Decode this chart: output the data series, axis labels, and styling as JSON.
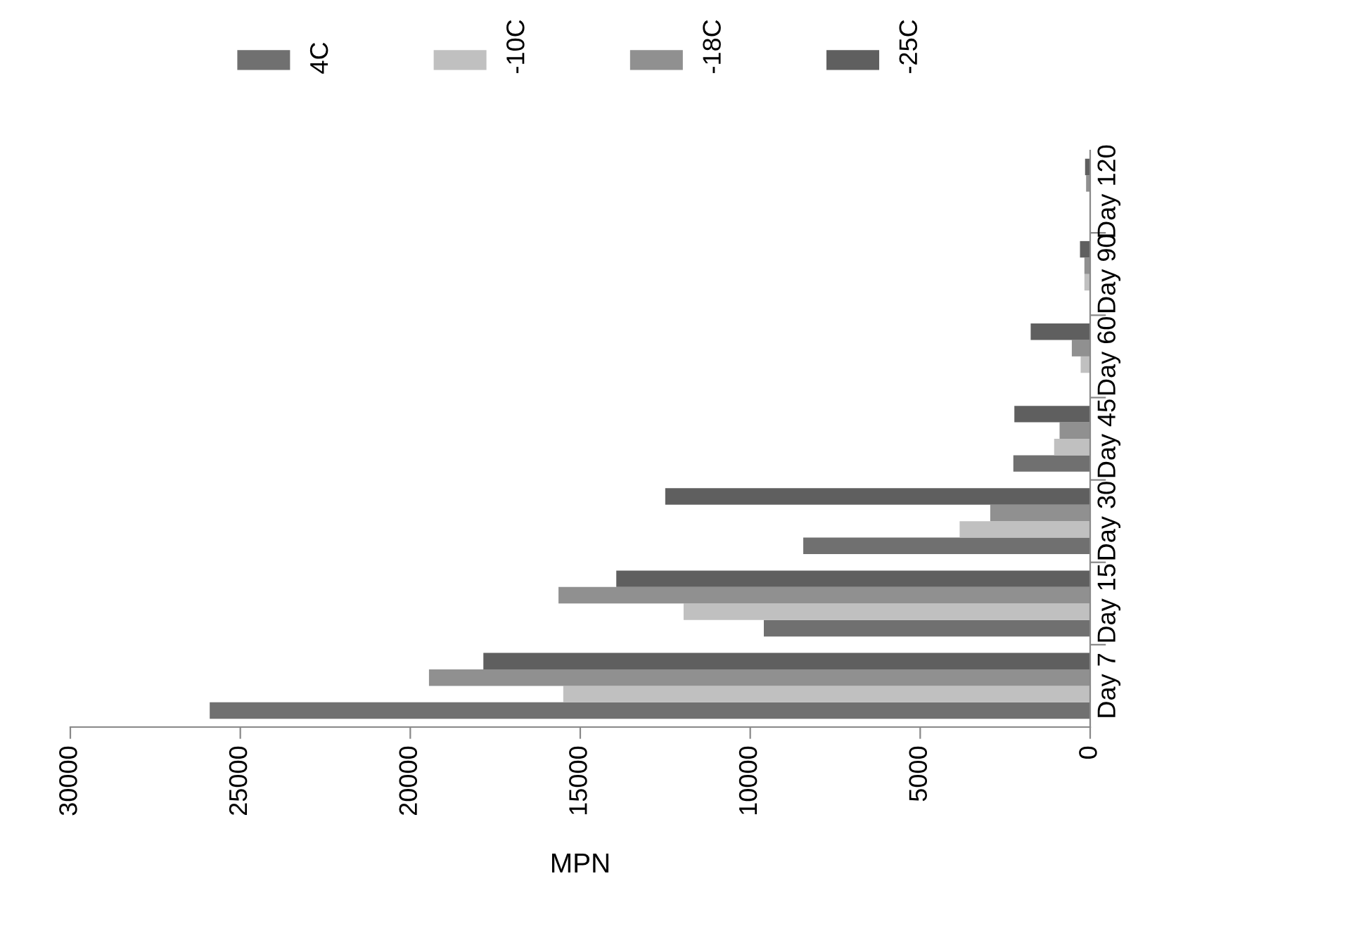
{
  "chart_data": {
    "type": "bar",
    "orientation": "horizontal",
    "categories": [
      "Day 120",
      "Day 90",
      "Day 60",
      "Day 45",
      "Day 30",
      "Day 15",
      "Day 7"
    ],
    "series": [
      {
        "name": "4C",
        "color": "#707070",
        "values": [
          0,
          0,
          0,
          2260,
          8440,
          9600,
          25900
        ]
      },
      {
        "name": "-10C",
        "color": "#c0c0c0",
        "values": [
          0,
          170,
          280,
          1060,
          3840,
          11960,
          15500
        ]
      },
      {
        "name": "-18C",
        "color": "#909090",
        "values": [
          120,
          170,
          540,
          900,
          2940,
          15640,
          19450
        ]
      },
      {
        "name": "-25C",
        "color": "#5f5f5f",
        "values": [
          150,
          300,
          1750,
          2230,
          12500,
          13940,
          17850
        ]
      }
    ],
    "xlabel": "MPN",
    "xlim": [
      30000,
      0
    ],
    "xticks": [
      30000,
      25000,
      20000,
      15000,
      10000,
      5000,
      0
    ],
    "grid": false,
    "legend": "top"
  }
}
